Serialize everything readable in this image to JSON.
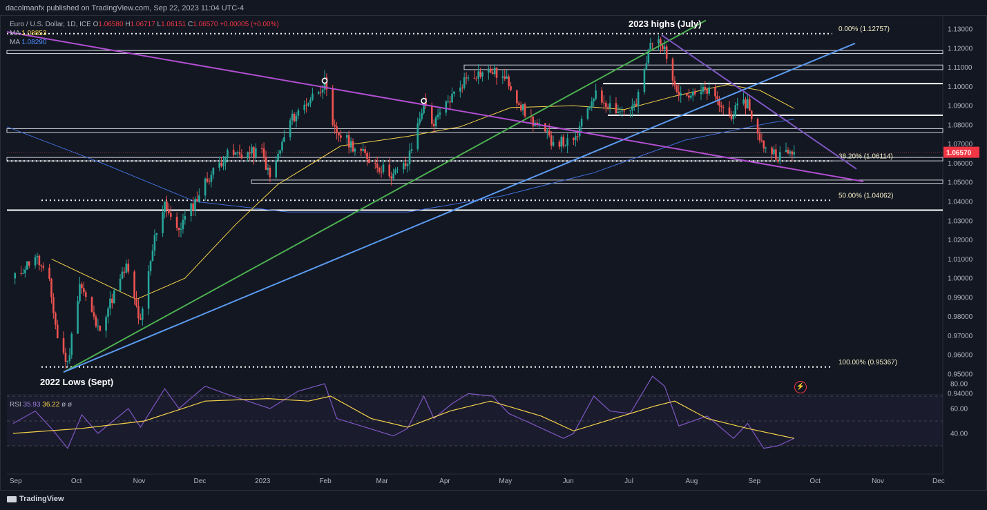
{
  "header": {
    "published": "dacolmanfx published on TradingView.com, Sep 22, 2023 11:04 UTC-4"
  },
  "legend": {
    "symbol": "Euro / U.S. Dollar, 1D, ICE",
    "o_label": "O",
    "o": "1.06580",
    "h_label": "H",
    "h": "1.06717",
    "l_label": "L",
    "l": "1.06151",
    "c_label": "C",
    "c": "1.06570",
    "change": "+0.00005 (+0.00%)",
    "ma1_label": "MA",
    "ma1_value": "1.08853",
    "ma2_label": "MA",
    "ma2_value": "1.08290"
  },
  "rsi_legend": {
    "label": "RSI",
    "value1": "35.93",
    "value2": "36.22",
    "extra1": "ø",
    "extra2": "ø"
  },
  "annotations": {
    "highs": "2023 highs (July)",
    "lows": "2022 Lows (Sept)",
    "fib0": "0.00% (1.12757)",
    "fib382": "38.20% (1.06114)",
    "fib50": "50.00% (1.04062)",
    "fib100": "100.00% (0.95367)"
  },
  "price_tag": "1.06570",
  "footer": {
    "brand": "TradingView"
  },
  "colors": {
    "background": "#131722",
    "up": "#26a69a",
    "down": "#ef5350",
    "ma50": "#f7d44a",
    "ma200": "#3f6fd8",
    "green_trend": "#4caf50",
    "blue_trend": "#5b9bf0",
    "purple_trend": "#b04fd0",
    "violet_trend": "#7e57c2",
    "rsi": "#7e57c2"
  },
  "chart_data": [
    {
      "type": "candlestick",
      "title": "Euro / U.S. Dollar, 1D, ICE",
      "x_labels": [
        "Sep",
        "Oct",
        "Nov",
        "Dec",
        "2023",
        "Feb",
        "Mar",
        "Apr",
        "May",
        "Jun",
        "Jul",
        "Aug",
        "Sep",
        "Oct",
        "Nov",
        "Dec"
      ],
      "y_ticks": [
        "1.13000",
        "1.12000",
        "1.11000",
        "1.10000",
        "1.09000",
        "1.08000",
        "1.07000",
        "1.06000",
        "1.05000",
        "1.04000",
        "1.03000",
        "1.02000",
        "1.01000",
        "1.00000",
        "0.99000",
        "0.98000",
        "0.97000",
        "0.96000",
        "0.95000",
        "0.94000"
      ],
      "ylim": [
        0.94,
        1.13
      ],
      "close_path": [
        {
          "date": "2022-09-01",
          "close": 0.999
        },
        {
          "date": "2022-09-12",
          "close": 1.012
        },
        {
          "date": "2022-09-19",
          "close": 0.997
        },
        {
          "date": "2022-09-23",
          "close": 0.969
        },
        {
          "date": "2022-09-28",
          "close": 0.955
        },
        {
          "date": "2022-10-04",
          "close": 0.998
        },
        {
          "date": "2022-10-13",
          "close": 0.973
        },
        {
          "date": "2022-10-27",
          "close": 1.006
        },
        {
          "date": "2022-11-03",
          "close": 0.976
        },
        {
          "date": "2022-11-10",
          "close": 1.021
        },
        {
          "date": "2022-11-15",
          "close": 1.04
        },
        {
          "date": "2022-11-21",
          "close": 1.024
        },
        {
          "date": "2022-11-30",
          "close": 1.04
        },
        {
          "date": "2022-12-05",
          "close": 1.05
        },
        {
          "date": "2022-12-15",
          "close": 1.064
        },
        {
          "date": "2023-01-02",
          "close": 1.066
        },
        {
          "date": "2023-01-06",
          "close": 1.052
        },
        {
          "date": "2023-01-16",
          "close": 1.082
        },
        {
          "date": "2023-02-02",
          "close": 1.102
        },
        {
          "date": "2023-02-06",
          "close": 1.078
        },
        {
          "date": "2023-02-16",
          "close": 1.069
        },
        {
          "date": "2023-03-01",
          "close": 1.058
        },
        {
          "date": "2023-03-08",
          "close": 1.054
        },
        {
          "date": "2023-03-15",
          "close": 1.06
        },
        {
          "date": "2023-03-23",
          "close": 1.092
        },
        {
          "date": "2023-03-28",
          "close": 1.08
        },
        {
          "date": "2023-04-04",
          "close": 1.092
        },
        {
          "date": "2023-04-14",
          "close": 1.106
        },
        {
          "date": "2023-04-26",
          "close": 1.108
        },
        {
          "date": "2023-05-04",
          "close": 1.102
        },
        {
          "date": "2023-05-12",
          "close": 1.086
        },
        {
          "date": "2023-05-25",
          "close": 1.072
        },
        {
          "date": "2023-06-05",
          "close": 1.07
        },
        {
          "date": "2023-06-15",
          "close": 1.096
        },
        {
          "date": "2023-06-28",
          "close": 1.087
        },
        {
          "date": "2023-07-06",
          "close": 1.09
        },
        {
          "date": "2023-07-13",
          "close": 1.122
        },
        {
          "date": "2023-07-18",
          "close": 1.124
        },
        {
          "date": "2023-07-27",
          "close": 1.097
        },
        {
          "date": "2023-08-03",
          "close": 1.095
        },
        {
          "date": "2023-08-10",
          "close": 1.098
        },
        {
          "date": "2023-08-21",
          "close": 1.085
        },
        {
          "date": "2023-08-30",
          "close": 1.092
        },
        {
          "date": "2023-09-05",
          "close": 1.071
        },
        {
          "date": "2023-09-14",
          "close": 1.064
        },
        {
          "date": "2023-09-22",
          "close": 1.0657
        }
      ],
      "series": [
        {
          "name": "MA",
          "last": 1.08853
        },
        {
          "name": "MA",
          "last": 1.0829
        }
      ],
      "fibonacci": [
        {
          "level": "0.00%",
          "price": 1.12757
        },
        {
          "level": "38.20%",
          "price": 1.06114
        },
        {
          "level": "50.00%",
          "price": 1.04062
        },
        {
          "level": "100.00%",
          "price": 0.95367
        }
      ],
      "horizontal_levels": [
        1.118,
        1.11,
        1.1015,
        1.085,
        1.077,
        1.0625,
        1.0505,
        1.0355
      ],
      "last_price": 1.0657
    },
    {
      "type": "line",
      "title": "RSI",
      "y_ticks": [
        "80.00",
        "60.00",
        "40.00"
      ],
      "ylim": [
        30,
        80
      ],
      "series": [
        {
          "name": "RSI",
          "last": 35.93
        },
        {
          "name": "RSI MA",
          "last": 36.22
        }
      ]
    }
  ]
}
